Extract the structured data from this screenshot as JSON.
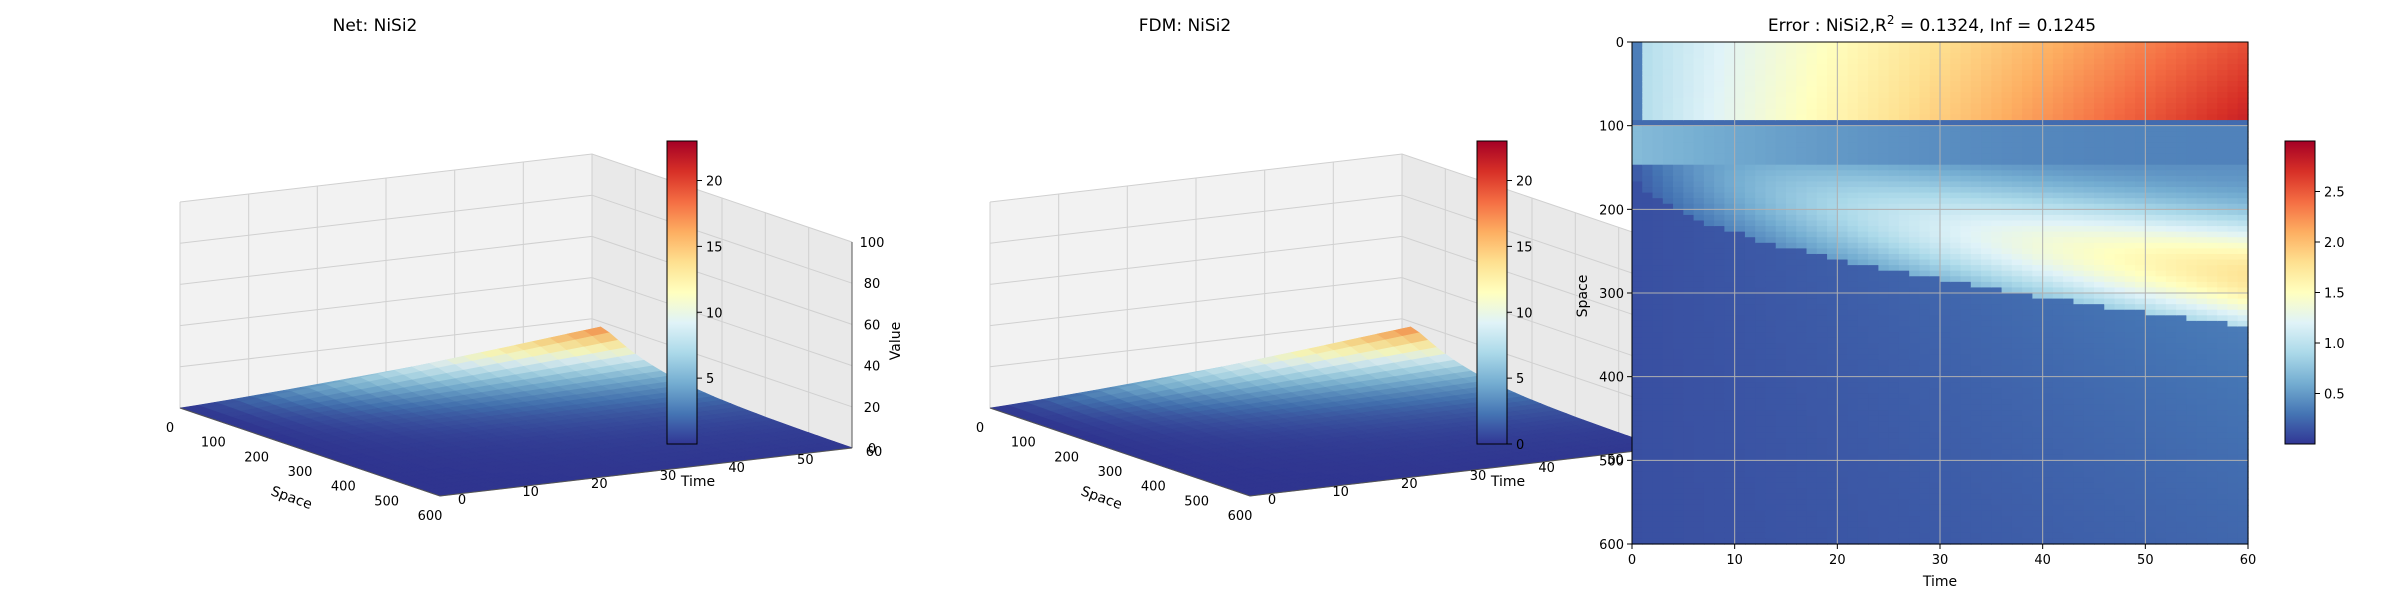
{
  "chart_data": [
    {
      "type": "surface3d",
      "title": "Net: NiSi2",
      "xlabel": "Space",
      "ylabel": "Time",
      "zlabel": "Value",
      "xlim": [
        0,
        600
      ],
      "ylim": [
        0,
        60
      ],
      "zlim": [
        0,
        100
      ],
      "xticks": [
        "0",
        "100",
        "200",
        "300",
        "400",
        "500",
        "600"
      ],
      "yticks": [
        "0",
        "10",
        "20",
        "30",
        "40",
        "50",
        "60"
      ],
      "zticks": [
        "0",
        "20",
        "40",
        "60",
        "80",
        "100"
      ],
      "colorbar": {
        "range": [
          0,
          23
        ],
        "ticks": [
          "5",
          "10",
          "15",
          "20"
        ],
        "colormap": "RdYlBu_r"
      },
      "surface": {
        "peak_value": 23,
        "peak_at_time": 60,
        "peak_near_space": 0,
        "decay_space_scale": 120
      }
    },
    {
      "type": "surface3d",
      "title": "FDM: NiSi2",
      "xlabel": "Space",
      "ylabel": "Time",
      "zlabel": "Value",
      "xlim": [
        0,
        600
      ],
      "ylim": [
        0,
        60
      ],
      "zlim": [
        0,
        100
      ],
      "xticks": [
        "0",
        "100",
        "200",
        "300",
        "400",
        "500",
        "600"
      ],
      "yticks": [
        "0",
        "10",
        "20",
        "30",
        "40",
        "50",
        "60"
      ],
      "zticks": [
        "0",
        "20",
        "40",
        "60",
        "80",
        "100"
      ],
      "colorbar": {
        "range": [
          0,
          23
        ],
        "ticks": [
          "0",
          "5",
          "10",
          "15",
          "20"
        ],
        "colormap": "RdYlBu_r"
      },
      "surface": {
        "peak_value": 23,
        "peak_at_time": 60,
        "peak_near_space": 0,
        "decay_space_scale": 120
      }
    },
    {
      "type": "heatmap",
      "title_prefix": "Error : NiSi2,R",
      "title_sup": "2",
      "title_suffix": " = 0.1324, Inf = 0.1245",
      "xlabel": "Time",
      "ylabel": "Space",
      "xlim": [
        0,
        60
      ],
      "ylim": [
        600,
        0
      ],
      "xticks": [
        "0",
        "10",
        "20",
        "30",
        "40",
        "50",
        "60"
      ],
      "yticks": [
        "0",
        "100",
        "200",
        "300",
        "400",
        "500",
        "600"
      ],
      "grid": true,
      "colorbar": {
        "range": [
          0,
          3
        ],
        "ticks": [
          "0.5",
          "1.0",
          "1.5",
          "2.0",
          "2.5"
        ],
        "colormap": "RdYlBu_r"
      }
    }
  ]
}
